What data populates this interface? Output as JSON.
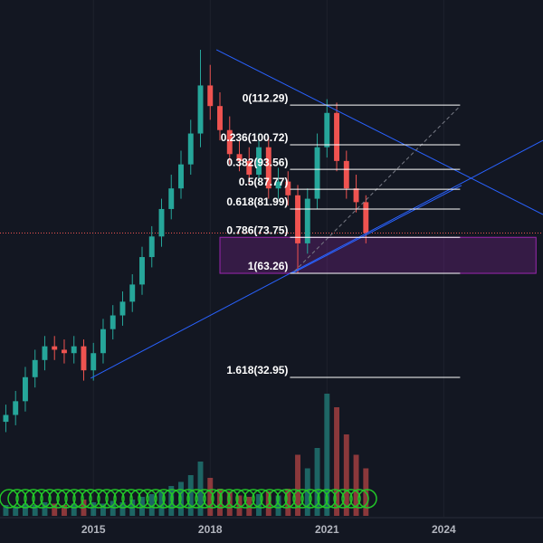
{
  "chart_data": {
    "type": "candlestick",
    "xlim": [
      2012.6,
      2026.55
    ],
    "ylim": [
      -7.4,
      142.9
    ],
    "xticks": [
      2015,
      2018,
      2021,
      2024
    ],
    "x": [
      2012.75,
      2013.0,
      2013.25,
      2013.5,
      2013.75,
      2014.0,
      2014.25,
      2014.5,
      2014.75,
      2015.0,
      2015.25,
      2015.5,
      2015.75,
      2016.0,
      2016.25,
      2016.5,
      2016.75,
      2017.0,
      2017.25,
      2017.5,
      2017.75,
      2018.0,
      2018.25,
      2018.5,
      2018.75,
      2019.0,
      2019.25,
      2019.5,
      2019.75,
      2020.0,
      2020.25,
      2020.5,
      2020.75,
      2021.0,
      2021.25,
      2021.5,
      2021.75,
      2022.0
    ],
    "open": [
      20,
      22,
      26,
      33,
      38,
      42,
      41,
      40,
      42,
      35,
      40,
      47,
      51,
      55,
      60,
      68,
      74,
      82,
      88,
      95,
      104,
      118,
      112,
      105,
      98,
      96,
      92,
      100,
      88,
      90,
      86,
      72,
      85,
      100,
      110,
      96,
      88,
      84
    ],
    "high": [
      25,
      29,
      36,
      41,
      45,
      45,
      44,
      45,
      44,
      43,
      50,
      54,
      58,
      63,
      71,
      77,
      85,
      92,
      99,
      108,
      128.4,
      124,
      116,
      109,
      102,
      100,
      104,
      103,
      94,
      93,
      89,
      88,
      104,
      114,
      113,
      99,
      92,
      86
    ],
    "low": [
      17,
      19,
      23,
      30,
      35,
      38,
      37,
      37,
      32,
      32,
      37,
      44,
      48,
      52,
      57,
      65,
      71,
      79,
      85,
      92,
      100,
      108,
      102,
      95,
      93,
      89,
      89,
      85,
      85,
      83,
      63.3,
      69,
      82,
      97,
      93,
      85,
      81,
      72
    ],
    "close": [
      22,
      26,
      33,
      38,
      42,
      41,
      40,
      42,
      35,
      40,
      47,
      51,
      55,
      60,
      68,
      74,
      82,
      88,
      95,
      104,
      118,
      112,
      105,
      98,
      96,
      92,
      100,
      88,
      90,
      86,
      72,
      85,
      100,
      110,
      96,
      88,
      84,
      75
    ],
    "up_color": "#26a69a",
    "down_color": "#ef5350",
    "volume": {
      "ylim": [
        0,
        100
      ],
      "values": [
        8,
        7,
        9,
        8,
        10,
        9,
        8,
        9,
        12,
        10,
        9,
        11,
        10,
        12,
        14,
        16,
        18,
        22,
        25,
        30,
        40,
        28,
        20,
        18,
        15,
        14,
        16,
        18,
        15,
        20,
        45,
        35,
        50,
        90,
        80,
        60,
        45,
        35
      ]
    },
    "trendlines": [
      {
        "x": [
          2018.16,
          2026.55
        ],
        "y": [
          128.4,
          80.4
        ],
        "color": "#2962ff"
      },
      {
        "x": [
          2014.93,
          2026.55
        ],
        "y": [
          32.7,
          102.0
        ],
        "color": "#2962ff"
      },
      {
        "x": [
          2020.11,
          2024.46
        ],
        "y": [
          63.3,
          88.9
        ],
        "color": "#2962ff"
      },
      {
        "x": [
          2020.16,
          2024.42
        ],
        "y": [
          63.8,
          112.0
        ],
        "color": "#787b86",
        "dashed": true
      }
    ],
    "fib": {
      "xrange": [
        2020.05,
        2024.42
      ],
      "zone_xrange": [
        2018.25,
        2026.37
      ],
      "levels": [
        {
          "label": "0(112.29)",
          "value": 112.29
        },
        {
          "label": "0.236(100.72)",
          "value": 100.72
        },
        {
          "label": "0.382(93.56)",
          "value": 93.56
        },
        {
          "label": "0.5(87.77)",
          "value": 87.77
        },
        {
          "label": "0.618(81.99)",
          "value": 81.99
        },
        {
          "label": "0.786(73.75)",
          "value": 73.75
        },
        {
          "label": "1(63.26)",
          "value": 63.26
        },
        {
          "label": "1.618(32.95)",
          "value": 32.95
        }
      ]
    }
  }
}
